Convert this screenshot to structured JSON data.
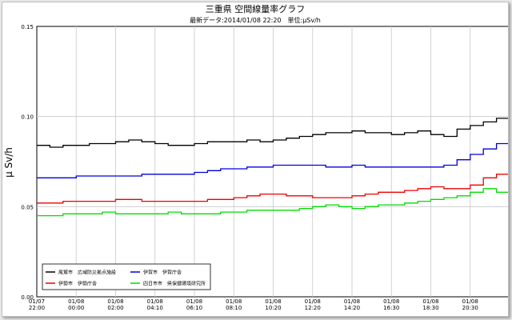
{
  "chart_data": {
    "type": "line",
    "title": "三重県 空間線量率グラフ",
    "subtitle": "最新データ:2014/01/08 22:20　単位:μSv/h",
    "ylabel": "μ Sv/h",
    "xlabel": "",
    "ylim": [
      0.0,
      0.15
    ],
    "y_ticks": [
      "0.00",
      "0.05",
      "0.10",
      "0.15"
    ],
    "grid": true,
    "legend_position": "bottom-left",
    "x_tick_labels": [
      [
        "01/07",
        "22:00"
      ],
      [
        "01/08",
        "00:00"
      ],
      [
        "01/08",
        "02:00"
      ],
      [
        "01/08",
        "04:10"
      ],
      [
        "01/08",
        "06:10"
      ],
      [
        "01/08",
        "08:10"
      ],
      [
        "01/08",
        "10:20"
      ],
      [
        "01/08",
        "12:20"
      ],
      [
        "01/08",
        "14:20"
      ],
      [
        "01/08",
        "16:30"
      ],
      [
        "01/08",
        "18:30"
      ],
      [
        "01/08",
        "20:30"
      ]
    ],
    "series": [
      {
        "name": "尾鷲市　広域防災拠点施設",
        "color": "#000000",
        "values": [
          0.084,
          0.083,
          0.084,
          0.084,
          0.085,
          0.085,
          0.086,
          0.087,
          0.086,
          0.085,
          0.084,
          0.084,
          0.085,
          0.086,
          0.086,
          0.086,
          0.087,
          0.086,
          0.087,
          0.088,
          0.089,
          0.09,
          0.091,
          0.091,
          0.092,
          0.091,
          0.091,
          0.09,
          0.091,
          0.092,
          0.09,
          0.089,
          0.093,
          0.095,
          0.097,
          0.099,
          0.102
        ]
      },
      {
        "name": "伊賀市　伊賀庁舎",
        "color": "#0000dd",
        "values": [
          0.066,
          0.066,
          0.066,
          0.067,
          0.067,
          0.067,
          0.067,
          0.067,
          0.068,
          0.068,
          0.068,
          0.068,
          0.069,
          0.07,
          0.071,
          0.071,
          0.072,
          0.072,
          0.073,
          0.073,
          0.073,
          0.073,
          0.072,
          0.072,
          0.073,
          0.072,
          0.072,
          0.072,
          0.072,
          0.072,
          0.072,
          0.073,
          0.076,
          0.079,
          0.082,
          0.085,
          0.086
        ]
      },
      {
        "name": "伊勢市　伊勢庁舎",
        "color": "#ee0000",
        "values": [
          0.052,
          0.052,
          0.053,
          0.053,
          0.053,
          0.053,
          0.054,
          0.054,
          0.053,
          0.053,
          0.053,
          0.053,
          0.053,
          0.054,
          0.054,
          0.055,
          0.056,
          0.057,
          0.057,
          0.056,
          0.056,
          0.055,
          0.055,
          0.055,
          0.056,
          0.057,
          0.058,
          0.058,
          0.059,
          0.06,
          0.061,
          0.06,
          0.06,
          0.062,
          0.066,
          0.068,
          0.066
        ]
      },
      {
        "name": "四日市市　県保健環境研究所",
        "color": "#00dd00",
        "values": [
          0.045,
          0.045,
          0.046,
          0.046,
          0.046,
          0.047,
          0.046,
          0.046,
          0.046,
          0.046,
          0.047,
          0.046,
          0.046,
          0.046,
          0.047,
          0.047,
          0.048,
          0.048,
          0.048,
          0.048,
          0.049,
          0.05,
          0.051,
          0.05,
          0.049,
          0.05,
          0.051,
          0.051,
          0.052,
          0.053,
          0.054,
          0.055,
          0.056,
          0.058,
          0.06,
          0.058,
          0.055
        ]
      }
    ]
  }
}
